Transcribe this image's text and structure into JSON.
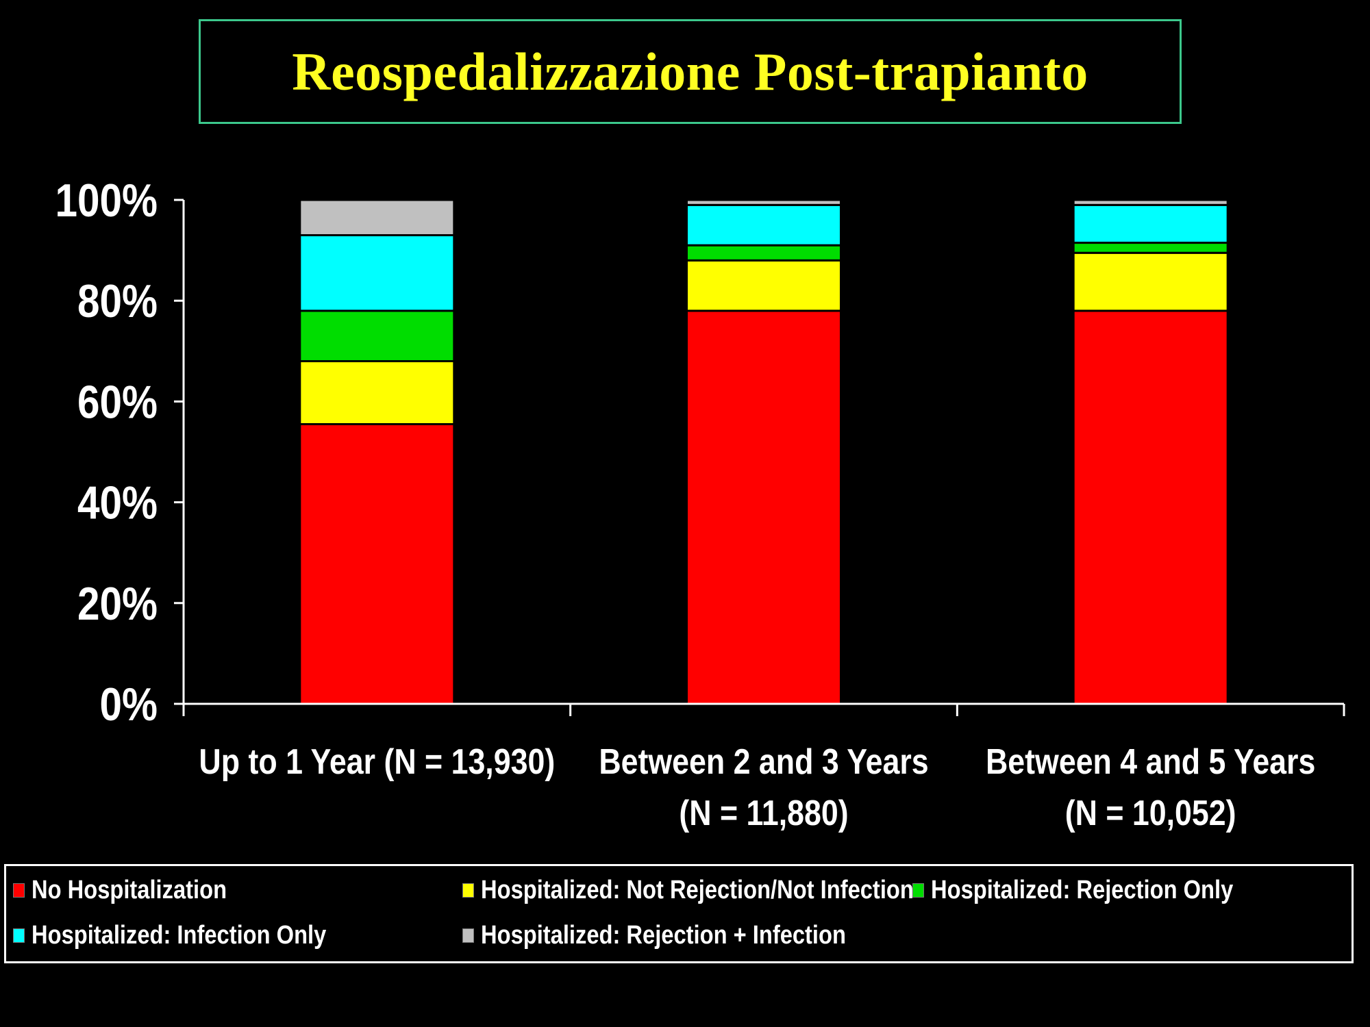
{
  "slide": {
    "title": "Reospedalizzazione Post-trapianto"
  },
  "chart_data": {
    "type": "bar",
    "stacked": true,
    "categories": [
      [
        "Up to 1 Year (N = 13,930)"
      ],
      [
        "Between 2 and 3 Years",
        "(N = 11,880)"
      ],
      [
        "Between 4 and 5 Years",
        "(N = 10,052)"
      ]
    ],
    "series": [
      {
        "name": "No Hospitalization",
        "color": "#ff0000",
        "values": [
          55.5,
          78.0,
          78.0
        ]
      },
      {
        "name": "Hospitalized: Not Rejection/Not Infection",
        "color": "#ffff00",
        "values": [
          12.5,
          10.0,
          11.5
        ]
      },
      {
        "name": "Hospitalized: Rejection Only",
        "color": "#00dd00",
        "values": [
          10.0,
          3.0,
          2.0
        ]
      },
      {
        "name": "Hospitalized: Infection Only",
        "color": "#00ffff",
        "values": [
          15.0,
          8.0,
          7.5
        ]
      },
      {
        "name": "Hospitalized: Rejection + Infection",
        "color": "#c0c0c0",
        "values": [
          7.0,
          1.0,
          1.0
        ]
      }
    ],
    "ylim": [
      0,
      100
    ],
    "yticks": [
      "0%",
      "20%",
      "40%",
      "60%",
      "80%",
      "100%"
    ],
    "grid": false,
    "legend_position": "bottom"
  }
}
